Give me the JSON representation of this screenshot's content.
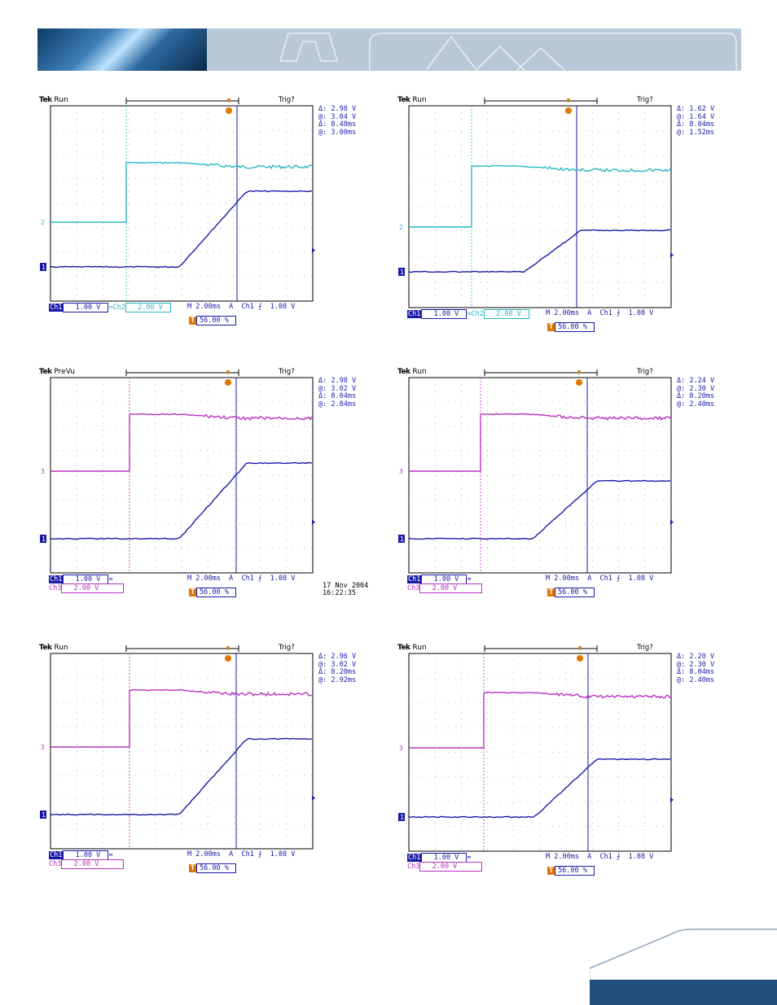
{
  "colors": {
    "ch1": "#1a1aa6",
    "ch2": "#2ab7c6",
    "ch3": "#b832c0",
    "trigger": "#e07800",
    "banner_dark": "#1f4f7a"
  },
  "scopes": [
    {
      "brand": "Tek",
      "mode": "Run",
      "trig": "Trig?",
      "readout": {
        "dv": "2.98 V",
        "av": "3.04 V",
        "dt": "8.48ms",
        "at": "3.00ms"
      },
      "ch1_scale": "1.00 V",
      "ch2_label": "Ch2",
      "ch2_scale": "2.00 V",
      "timebase": "M 2.00ms",
      "trigger": "A  Ch1 ⨍  1.08 V",
      "position": "56.00 %",
      "timestamp": ""
    },
    {
      "brand": "Tek",
      "mode": "Run",
      "trig": "Trig?",
      "readout": {
        "dv": "1.62 V",
        "av": "1.64 V",
        "dt": "8.04ms",
        "at": "1.52ms"
      },
      "ch1_scale": "1.00 V",
      "ch2_label": "Ch2",
      "ch2_scale": "2.00 V",
      "timebase": "M 2.00ms",
      "trigger": "A  Ch1 ⨍  1.08 V",
      "position": "56.00 %",
      "timestamp": ""
    },
    {
      "brand": "Tek",
      "mode": "PreVu",
      "trig": "Trig?",
      "readout": {
        "dv": "2.98 V",
        "av": "3.02 V",
        "dt": "8.04ms",
        "at": "2.84ms"
      },
      "ch1_scale": "1.00 V",
      "ch2_label": "Ch3",
      "ch2_scale": "2.00 V",
      "timebase": "M 2.00ms",
      "trigger": "A  Ch1 ⨍  1.08 V",
      "position": "56.00 %",
      "timestamp": "17 Nov 2004\n16:22:35"
    },
    {
      "brand": "Tek",
      "mode": "Run",
      "trig": "Trig?",
      "readout": {
        "dv": "2.24 V",
        "av": "2.30 V",
        "dt": "8.20ms",
        "at": "2.40ms"
      },
      "ch1_scale": "1.00 V",
      "ch2_label": "Ch3",
      "ch2_scale": "2.00 V",
      "timebase": "M 2.00ms",
      "trigger": "A  Ch1 ⨍  1.08 V",
      "position": "56.00 %",
      "timestamp": ""
    },
    {
      "brand": "Tek",
      "mode": "Run",
      "trig": "Trig?",
      "readout": {
        "dv": "2.96 V",
        "av": "3.02 V",
        "dt": "8.20ms",
        "at": "2.92ms"
      },
      "ch1_scale": "1.00 V",
      "ch2_label": "Ch3",
      "ch2_scale": "2.00 V",
      "timebase": "M 2.00ms",
      "trigger": "A  Ch1 ⨍  1.08 V",
      "position": "56.00 %",
      "timestamp": ""
    },
    {
      "brand": "Tek",
      "mode": "Run",
      "trig": "Trig?",
      "readout": {
        "dv": "2.20 V",
        "av": "2.30 V",
        "dt": "8.04ms",
        "at": "2.40ms"
      },
      "ch1_scale": "1.00 V",
      "ch2_label": "Ch3",
      "ch2_scale": "2.00 V",
      "timebase": "M 2.00ms",
      "trigger": "A  Ch1 ⨍  1.08 V",
      "position": "56.00 %",
      "timestamp": ""
    }
  ],
  "labels": {
    "dv": "Δ:",
    "av": "@:",
    "ch1": "Ch1",
    "marker1": "1",
    "marker2": "2",
    "marker3": "3",
    "t": "T"
  }
}
